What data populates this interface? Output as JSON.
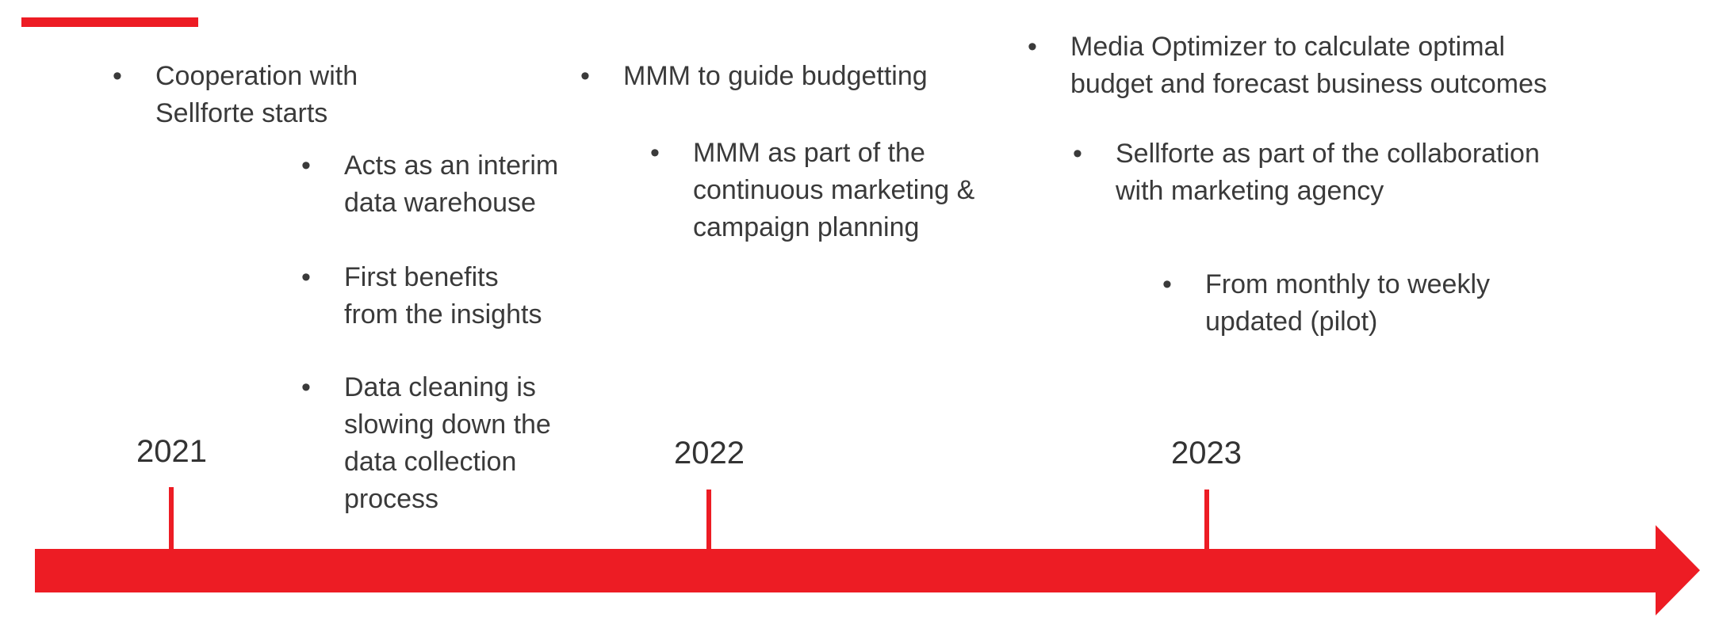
{
  "colors": {
    "accent": "#ed1c24",
    "text": "#3a3a3a"
  },
  "bullet_glyph": "•",
  "timeline": {
    "years": [
      "2021",
      "2022",
      "2023"
    ]
  },
  "col2021": {
    "main": [
      "Cooperation with",
      "Sellforte starts"
    ],
    "sub1": [
      "Acts as an interim",
      "data warehouse"
    ],
    "sub2": [
      "First benefits",
      "from the insights"
    ],
    "sub3": [
      "Data cleaning is",
      "slowing down the",
      "data collection",
      "process"
    ]
  },
  "col2022": {
    "main": [
      "MMM to guide budgetting"
    ],
    "sub1": [
      "MMM as part of the",
      "continuous marketing &",
      "campaign planning"
    ]
  },
  "col2023": {
    "main": [
      "Media Optimizer to calculate optimal",
      "budget and forecast business outcomes"
    ],
    "sub1": [
      "Sellforte as part of the collaboration",
      "with marketing agency"
    ],
    "sub2": [
      "From monthly to weekly",
      "updated (pilot)"
    ]
  }
}
